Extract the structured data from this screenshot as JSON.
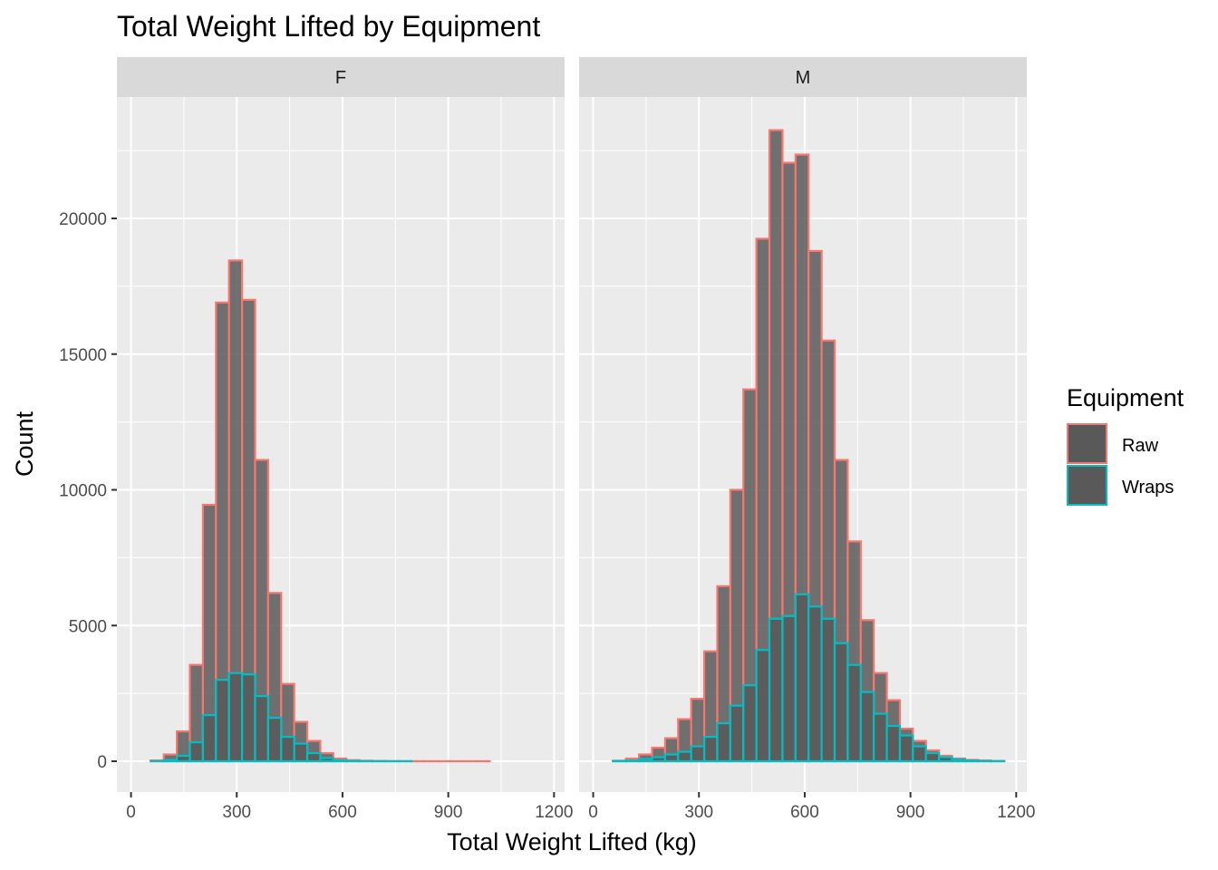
{
  "chart_data": {
    "type": "histogram",
    "title": "Total Weight Lifted by Equipment",
    "xlabel": "Total Weight Lifted (kg)",
    "ylabel": "Count",
    "facets": [
      "F",
      "M"
    ],
    "xlim": [
      0,
      1200
    ],
    "ylim": [
      -1000,
      24000
    ],
    "x_ticks": [
      0,
      300,
      600,
      900,
      1200
    ],
    "y_ticks": [
      0,
      5000,
      10000,
      15000,
      20000
    ],
    "bin_width": 37,
    "bin_starts": [
      56,
      93,
      130,
      167,
      204,
      241,
      278,
      315,
      352,
      389,
      426,
      463,
      500,
      537,
      574,
      611,
      648,
      685,
      722,
      759,
      796,
      833,
      870,
      907,
      944,
      981,
      1018,
      1055,
      1092,
      1129
    ],
    "legend": {
      "title": "Equipment",
      "position": "right",
      "items": [
        "Raw",
        "Wraps"
      ]
    },
    "colors": {
      "Raw": "#f8766d",
      "Wraps": "#00bfc4",
      "fill": "#595959",
      "panel": "#ebebeb",
      "strip": "#d9d9d9"
    },
    "series": [
      {
        "facet": "F",
        "name": "Raw",
        "values": [
          30,
          250,
          1100,
          3550,
          9450,
          16900,
          18450,
          17000,
          11100,
          6200,
          2850,
          1450,
          750,
          300,
          100,
          40,
          20,
          10,
          5,
          3,
          2,
          2,
          1,
          1,
          1,
          1,
          0,
          0,
          0,
          0
        ]
      },
      {
        "facet": "F",
        "name": "Wraps",
        "values": [
          5,
          50,
          200,
          700,
          1700,
          3000,
          3250,
          3200,
          2400,
          1600,
          900,
          650,
          300,
          120,
          40,
          15,
          5,
          2,
          1,
          1,
          0,
          0,
          0,
          0,
          0,
          0,
          0,
          0,
          0,
          0
        ]
      },
      {
        "facet": "M",
        "name": "Raw",
        "values": [
          20,
          100,
          250,
          500,
          850,
          1550,
          2300,
          4050,
          6450,
          10000,
          13700,
          19250,
          23250,
          22050,
          22350,
          18800,
          15500,
          11100,
          8100,
          5200,
          3250,
          2250,
          1200,
          750,
          400,
          200,
          100,
          50,
          30,
          10
        ]
      },
      {
        "facet": "M",
        "name": "Wraps",
        "values": [
          10,
          30,
          80,
          150,
          250,
          350,
          550,
          900,
          1400,
          2050,
          2800,
          4100,
          5250,
          5350,
          6150,
          5700,
          5250,
          4350,
          3550,
          2550,
          1750,
          1300,
          950,
          550,
          300,
          150,
          70,
          30,
          10,
          5
        ]
      }
    ]
  }
}
